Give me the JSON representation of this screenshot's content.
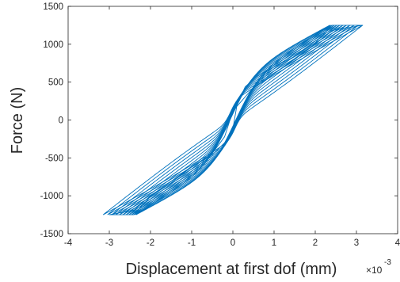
{
  "chart_data": {
    "type": "line",
    "title": "",
    "xlabel": "Displacement at first dof (mm)",
    "ylabel": "Force (N)",
    "x_exponent_label": "×10",
    "x_exponent_power": "-3",
    "xlim": [
      -4,
      4
    ],
    "ylim": [
      -1500,
      1500
    ],
    "x_ticks": [
      -4,
      -3,
      -2,
      -1,
      0,
      1,
      2,
      3,
      4
    ],
    "y_ticks": [
      -1500,
      -1000,
      -500,
      0,
      500,
      1000,
      1500
    ],
    "x_tick_labels": [
      "-4",
      "-3",
      "-2",
      "-1",
      "0",
      "1",
      "2",
      "3",
      "4"
    ],
    "y_tick_labels": [
      "-1500",
      "-1000",
      "-500",
      "0",
      "500",
      "1000",
      "1500"
    ],
    "grid": false,
    "line_color": "#0072BD",
    "series": [
      {
        "description_of_shape": "family of nested hysteresis loops (upper branch pinched near origin), extremes shown below",
        "points": [
          [
            -3.0,
            -1250
          ],
          [
            -2.4,
            -1190
          ],
          [
            -2.0,
            -1000
          ],
          [
            -1.5,
            -810
          ],
          [
            -1.0,
            -620
          ],
          [
            -0.5,
            -460
          ],
          [
            -0.2,
            -300
          ],
          [
            0.0,
            -120
          ],
          [
            0.1,
            200
          ],
          [
            0.3,
            440
          ],
          [
            0.6,
            580
          ],
          [
            1.0,
            700
          ],
          [
            1.5,
            840
          ],
          [
            2.0,
            1020
          ],
          [
            2.4,
            1250
          ],
          [
            3.15,
            1250
          ],
          [
            2.4,
            1180
          ],
          [
            2.0,
            1000
          ],
          [
            1.5,
            800
          ],
          [
            1.0,
            610
          ],
          [
            0.5,
            430
          ],
          [
            0.0,
            120
          ],
          [
            -0.2,
            -220
          ],
          [
            -0.5,
            -440
          ],
          [
            -1.0,
            -620
          ],
          [
            -1.5,
            -830
          ],
          [
            -2.0,
            -1010
          ],
          [
            -2.4,
            -1250
          ],
          [
            -3.0,
            -1250
          ]
        ]
      }
    ]
  }
}
